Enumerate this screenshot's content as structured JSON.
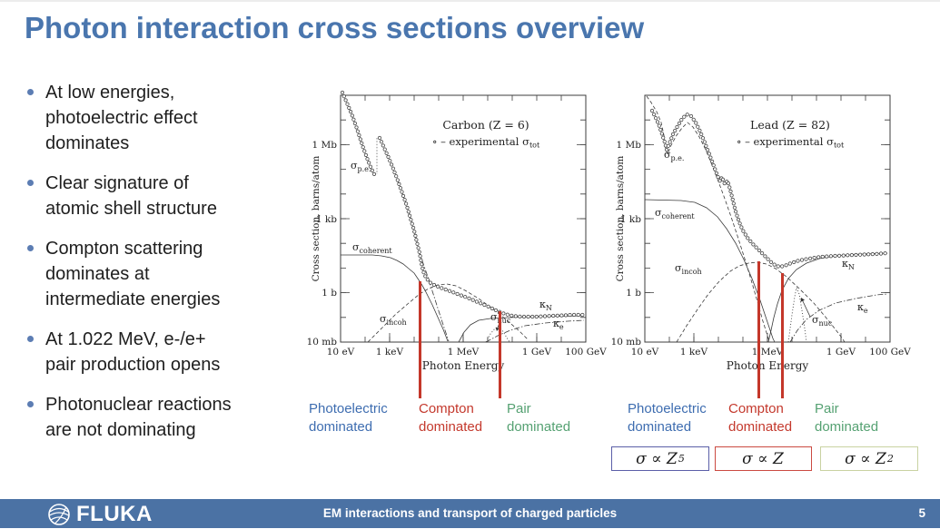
{
  "title": "Photon interaction cross sections overview",
  "colors": {
    "title_blue": "#4a76ae",
    "bullet_dot": "#5c7db3",
    "photoelectric_blue": "#3e6db0",
    "compton_red": "#c4392d",
    "pair_green": "#55a172",
    "marker_red": "#c4372a",
    "footer_blue": "#4b72a4",
    "box_z5_border": "#5b5fa8",
    "box_z_border": "#cb4a41",
    "box_z2_border": "#c9d2a2"
  },
  "bullets": [
    "At low energies,\nphotoelectric effect\ndominates",
    "Clear signature of\natomic shell structure",
    "Compton scattering\ndominates at\nintermediate energies",
    "At 1.022 MeV, e-/e+\npair production opens",
    "Photonuclear reactions\nare not dominating"
  ],
  "charts": {
    "carbon": {
      "title": "Carbon (Z = 6)",
      "legend_pre": "∘ – experimental σ",
      "legend_sub": "tot",
      "ylabel": "Cross section, barns/atom",
      "xlabel": "Photon Energy",
      "y_ticks": [
        "1 Mb",
        "1 kb",
        "1 b",
        "10 mb"
      ],
      "x_ticks": [
        "10 eV",
        "1 keV",
        "1 MeV",
        "1 GeV",
        "100 GeV"
      ],
      "labels": {
        "pe": {
          "m": "σ",
          "s": "p.e."
        },
        "coherent": {
          "m": "σ",
          "s": "coherent"
        },
        "incoh": {
          "m": "σ",
          "s": "incoh"
        },
        "nuc": {
          "m": "σ",
          "s": "nuc"
        },
        "kn": {
          "m": "κ",
          "s": "N"
        },
        "ke": {
          "m": "κ",
          "s": "e"
        }
      }
    },
    "lead": {
      "title": "Lead (Z = 82)",
      "legend_pre": "∘ – experimental σ",
      "legend_sub": "tot",
      "ylabel": "Cross section, barns/atom",
      "xlabel": "Photon Energy",
      "y_ticks": [
        "1 Mb",
        "1 kb",
        "1 b",
        "10 mb"
      ],
      "x_ticks": [
        "10 eV",
        "1 keV",
        "1 MeV",
        "1 GeV",
        "100 GeV"
      ],
      "labels": {
        "pe": {
          "m": "σ",
          "s": "p.e."
        },
        "coherent": {
          "m": "σ",
          "s": "coherent"
        },
        "incoh": {
          "m": "σ",
          "s": "incoh"
        },
        "nuc": {
          "m": "σ",
          "s": "nuc"
        },
        "kn": {
          "m": "κ",
          "s": "N"
        },
        "ke": {
          "m": "κ",
          "s": "e"
        }
      }
    }
  },
  "regions": {
    "photoelectric": "Photoelectric\ndominated",
    "compton": "Compton\ndominated",
    "pair": "Pair\ndominated"
  },
  "formulas": [
    {
      "base": "σ ∝ Z",
      "exp": "5"
    },
    {
      "base": "σ ∝ Z",
      "exp": ""
    },
    {
      "base": "σ ∝ Z",
      "exp": "2"
    }
  ],
  "footer": {
    "brand": "FLUKA",
    "text": "EM interactions and transport of charged particles",
    "page": "5"
  },
  "chart_data": [
    {
      "type": "line",
      "title": "Carbon (Z = 6)",
      "xlabel": "Photon Energy",
      "ylabel": "Cross section, barns/atom",
      "x_scale": "log",
      "y_scale": "log",
      "x_range_eV": [
        10,
        100000000000.0
      ],
      "y_range_barns": [
        0.01,
        100000000.0
      ],
      "x_tick_labels": [
        "10 eV",
        "1 keV",
        "1 MeV",
        "1 GeV",
        "100 GeV"
      ],
      "y_tick_labels": [
        "10 mb",
        "1 b",
        "1 kb",
        "1 Mb"
      ],
      "legend": "∘ – experimental σ_tot",
      "series": [
        {
          "name": "σ_tot (experimental)",
          "style": "circles",
          "points": [
            [
              10,
              60000000.0
            ],
            [
              30,
              8000000.0
            ],
            [
              100,
              1200000.0
            ],
            [
              280,
              90000.0
            ],
            [
              290,
              2300000.0
            ],
            [
              1000.0,
              120000.0
            ],
            [
              3000.0,
              11000.0
            ],
            [
              10000.0,
              1200.0
            ],
            [
              30000.0,
              130.0
            ],
            [
              100000.0,
              12
            ],
            [
              300000.0,
              3.2
            ],
            [
              1000000.0,
              1.7
            ],
            [
              3000000.0,
              1.0
            ],
            [
              10000000.0,
              0.72
            ],
            [
              100000000.0,
              0.58
            ],
            [
              1000000000.0,
              0.62
            ],
            [
              10000000000.0,
              0.64
            ],
            [
              100000000000.0,
              0.65
            ]
          ]
        },
        {
          "name": "σ_p.e.",
          "style": "dash-dot",
          "points": [
            [
              10,
              60000000.0
            ],
            [
              100,
              1200000.0
            ],
            [
              280,
              90000.0
            ],
            [
              290,
              2300000.0
            ],
            [
              1000.0,
              120000.0
            ],
            [
              10000.0,
              1200.0
            ],
            [
              100000.0,
              9
            ],
            [
              300000.0,
              0.25
            ],
            [
              1000000.0,
              0.012
            ]
          ]
        },
        {
          "name": "σ_coherent",
          "style": "solid",
          "points": [
            [
              10,
              5.5
            ],
            [
              100,
              5.5
            ],
            [
              1000.0,
              5.2
            ],
            [
              10000.0,
              3.2
            ],
            [
              30000.0,
              1.2
            ],
            [
              100000.0,
              0.3
            ],
            [
              300000.0,
              0.05
            ],
            [
              600000.0,
              0.012
            ]
          ]
        },
        {
          "name": "σ_incoh",
          "style": "dashed",
          "points": [
            [
              100,
              0.012
            ],
            [
              300,
              0.06
            ],
            [
              1000.0,
              0.4
            ],
            [
              10000.0,
              1.7
            ],
            [
              50000.0,
              2.3
            ],
            [
              100000.0,
              2.1
            ],
            [
              1000000.0,
              1.1
            ],
            [
              10000000.0,
              0.3
            ],
            [
              100000000.0,
              0.05
            ],
            [
              300000000.0,
              0.012
            ]
          ]
        },
        {
          "name": "κ_N",
          "style": "solid",
          "points": [
            [
              2000000.0,
              0.012
            ],
            [
              5000000.0,
              0.12
            ],
            [
              10000000.0,
              0.27
            ],
            [
              30000000.0,
              0.45
            ],
            [
              100000000.0,
              0.52
            ],
            [
              1000000000.0,
              0.6
            ],
            [
              10000000000.0,
              0.63
            ],
            [
              100000000000.0,
              0.64
            ]
          ]
        },
        {
          "name": "κ_e",
          "style": "dash-dot",
          "points": [
            [
              3000000.0,
              0.012
            ],
            [
              10000000.0,
              0.035
            ],
            [
              100000000.0,
              0.055
            ],
            [
              1000000000.0,
              0.065
            ],
            [
              10000000000.0,
              0.07
            ],
            [
              100000000000.0,
              0.07
            ]
          ]
        },
        {
          "name": "σ_nuc",
          "style": "dotted",
          "points": [
            [
              12000000.0,
              0.012
            ],
            [
              20000000.0,
              0.035
            ],
            [
              25000000.0,
              0.042
            ],
            [
              40000000.0,
              0.02
            ],
            [
              60000000.0,
              0.012
            ]
          ]
        }
      ]
    },
    {
      "type": "line",
      "title": "Lead (Z = 82)",
      "xlabel": "Photon Energy",
      "ylabel": "Cross section, barns/atom",
      "x_scale": "log",
      "y_scale": "log",
      "x_range_eV": [
        10,
        100000000000.0
      ],
      "y_range_barns": [
        0.01,
        100000000.0
      ],
      "x_tick_labels": [
        "10 eV",
        "1 keV",
        "1 MeV",
        "1 GeV",
        "100 GeV"
      ],
      "y_tick_labels": [
        "10 mb",
        "1 b",
        "1 kb",
        "1 Mb"
      ],
      "legend": "∘ – experimental σ_tot",
      "series": [
        {
          "name": "σ_tot (experimental)",
          "style": "circles",
          "points": [
            [
              10,
              20000000.0
            ],
            [
              50,
              2000000.0
            ],
            [
              80,
              800000.0
            ],
            [
              200,
              5000000.0
            ],
            [
              550,
              20000000.0
            ],
            [
              1000.0,
              11000000.0
            ],
            [
              3000.0,
              2000000.0
            ],
            [
              10000.0,
              300000.0
            ],
            [
              16000.0,
              140000.0
            ],
            [
              100000.0,
              5500.0
            ],
            [
              300000.0,
              400.0
            ],
            [
              1000000.0,
              70.0
            ],
            [
              3000000.0,
              14.0
            ],
            [
              10000000.0,
              16.0
            ],
            [
              100000000.0,
              28.0
            ],
            [
              1000000000.0,
              36.0
            ],
            [
              10000000000.0,
              39.0
            ],
            [
              100000000000.0,
              40.0
            ]
          ]
        },
        {
          "name": "σ_p.e.",
          "style": "dashed",
          "points": [
            [
              10,
              20000000.0
            ],
            [
              80,
              800000.0
            ],
            [
              550,
              20000000.0
            ],
            [
              1000.0,
              11000000.0
            ],
            [
              10000.0,
              300000.0
            ],
            [
              100000.0,
              5000.0
            ],
            [
              1000000.0,
              50
            ],
            [
              3000000.0,
              3
            ],
            [
              10000000.0,
              0.4
            ]
          ]
        },
        {
          "name": "σ_coherent",
          "style": "solid",
          "points": [
            [
              10,
              5000.0
            ],
            [
              1000.0,
              4500.0
            ],
            [
              10000.0,
              1400.0
            ],
            [
              30000.0,
              400.0
            ],
            [
              100000.0,
              55
            ],
            [
              300000.0,
              7
            ],
            [
              1000000.0,
              0.8
            ],
            [
              3000000.0,
              0.08
            ],
            [
              6000000.0,
              0.012
            ]
          ]
        },
        {
          "name": "σ_incoh",
          "style": "dashed",
          "points": [
            [
              300,
              0.012
            ],
            [
              1000.0,
              0.35
            ],
            [
              3000.0,
              3
            ],
            [
              10000.0,
              13
            ],
            [
              50000.0,
              28
            ],
            [
              100000.0,
              30
            ],
            [
              1000000.0,
              14
            ],
            [
              10000000.0,
              3.5
            ],
            [
              100000000.0,
              0.8
            ],
            [
              1000000000.0,
              0.06
            ],
            [
              1400000000.0,
              0.012
            ]
          ]
        },
        {
          "name": "κ_N",
          "style": "solid",
          "points": [
            [
              1100000.0,
              0.012
            ],
            [
              1500000.0,
              0.8
            ],
            [
              3000000.0,
              8
            ],
            [
              10000000.0,
              22
            ],
            [
              30000000.0,
              30
            ],
            [
              100000000.0,
              35
            ],
            [
              1000000000.0,
              38
            ],
            [
              10000000000.0,
              40
            ],
            [
              100000000000.0,
              40
            ]
          ]
        },
        {
          "name": "κ_e",
          "style": "dash-dot",
          "points": [
            [
              2000000.0,
              0.012
            ],
            [
              5000000.0,
              0.12
            ],
            [
              10000000.0,
              0.45
            ],
            [
              100000000.0,
              0.7
            ],
            [
              1000000000.0,
              0.88
            ],
            [
              10000000000.0,
              0.95
            ],
            [
              100000000000.0,
              0.97
            ]
          ]
        },
        {
          "name": "σ_nuc",
          "style": "dotted",
          "points": [
            [
              8000000.0,
              0.012
            ],
            [
              10000000.0,
              0.3
            ],
            [
              14000000.0,
              1.7
            ],
            [
              20000000.0,
              0.3
            ],
            [
              26000000.0,
              0.012
            ]
          ]
        }
      ]
    }
  ]
}
